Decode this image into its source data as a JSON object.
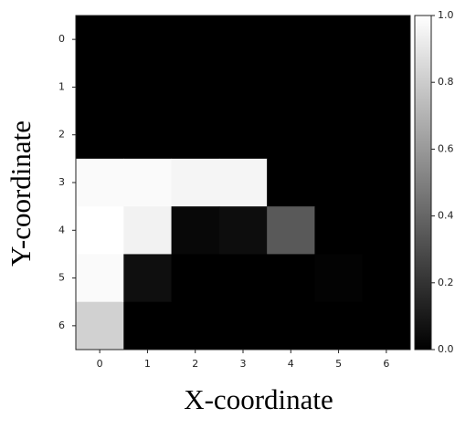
{
  "chart_data": {
    "type": "heatmap",
    "x_label": "X-coordinate",
    "y_label": "Y-coordinate",
    "values": [
      [
        0,
        0,
        0,
        0,
        0,
        0,
        0
      ],
      [
        0,
        0,
        0,
        0,
        0,
        0,
        0
      ],
      [
        0,
        0,
        0,
        0,
        0,
        0,
        0
      ],
      [
        0.98,
        0.98,
        0.96,
        0.96,
        0,
        0,
        0
      ],
      [
        1.0,
        0.95,
        0.03,
        0.05,
        0.35,
        0,
        0
      ],
      [
        0.98,
        0.06,
        0,
        0,
        0,
        0.01,
        0
      ],
      [
        0.82,
        0,
        0,
        0,
        0,
        0,
        0
      ]
    ],
    "xlim": [
      -0.5,
      6.5
    ],
    "ylim": [
      6.5,
      -0.5
    ],
    "xticks": [
      0,
      1,
      2,
      3,
      4,
      5,
      6
    ],
    "yticks": [
      0,
      1,
      2,
      3,
      4,
      5,
      6
    ],
    "colormap": "gray",
    "clim": [
      0,
      1
    ],
    "cticks": [
      {
        "value": 0,
        "label": "0.0"
      },
      0.2,
      0.4,
      0.6,
      0.8,
      {
        "value": 1,
        "label": "1.0"
      }
    ]
  }
}
